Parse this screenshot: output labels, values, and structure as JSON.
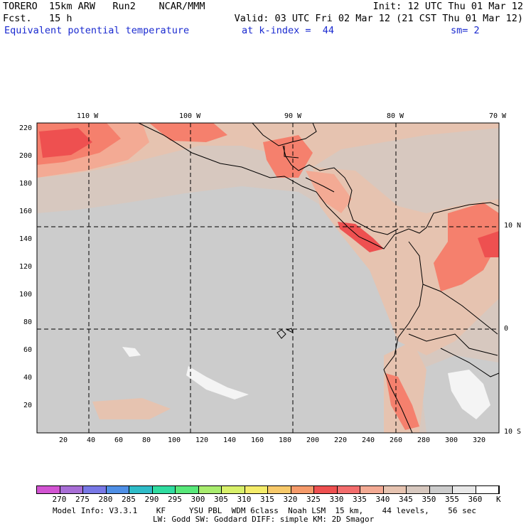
{
  "header": {
    "model": "TORERO  15km ARW   Run2    NCAR/MMM",
    "init": "Init: 12 UTC Thu 01 Mar 12",
    "fcst": "Fcst.   15 h",
    "valid": "Valid: 03 UTC Fri 02 Mar 12 (21 CST Thu 01 Mar 12)",
    "field": "Equivalent potential temperature",
    "level": "at k-index =  44",
    "smooth": "sm= 2"
  },
  "map": {
    "lon_labels": [
      "110 W",
      "100 W",
      "90 W",
      "80 W",
      "70 W"
    ],
    "lat_labels": [
      "10 N",
      "0",
      "10 S"
    ],
    "y_ticks": [
      "220",
      "200",
      "180",
      "160",
      "140",
      "120",
      "100",
      "80",
      "60",
      "40",
      "20"
    ],
    "x_ticks": [
      "20",
      "40",
      "60",
      "80",
      "100",
      "120",
      "140",
      "160",
      "180",
      "200",
      "220",
      "240",
      "260",
      "280",
      "300",
      "320"
    ],
    "colors": {
      "warm_dark": "#ee5050",
      "warm_mid": "#f5806d",
      "warm_light": "#f3aa94",
      "tan": "#e6c3b0",
      "gray_tan": "#d7c8bf",
      "gray": "#cccccc",
      "white": "#f4f4f4",
      "coast": "#000000"
    }
  },
  "colorbar": {
    "colors": [
      "#d254d2",
      "#a86ed6",
      "#7878e6",
      "#4f8fe6",
      "#2fbcc8",
      "#30dca0",
      "#58e87a",
      "#a8ec6e",
      "#d8f06a",
      "#f4ec6a",
      "#f7c96a",
      "#f59a6a",
      "#ee5050",
      "#f36d6d",
      "#f3aa94",
      "#e6c3b0",
      "#d7c8bf",
      "#cccccc",
      "#e8e8e8",
      "#ffffff"
    ],
    "labels": [
      "270",
      "275",
      "280",
      "285",
      "290",
      "295",
      "300",
      "305",
      "310",
      "315",
      "320",
      "325",
      "330",
      "335",
      "340",
      "345",
      "350",
      "355",
      "360"
    ],
    "unit": "K"
  },
  "footer": {
    "line1": "Model Info: V3.3.1    KF     YSU PBL  WDM 6class  Noah LSM  15 km,    44 levels,    56 sec",
    "line2": "LW: Godd SW: Goddard DIFF: simple KM: 2D Smagor"
  }
}
